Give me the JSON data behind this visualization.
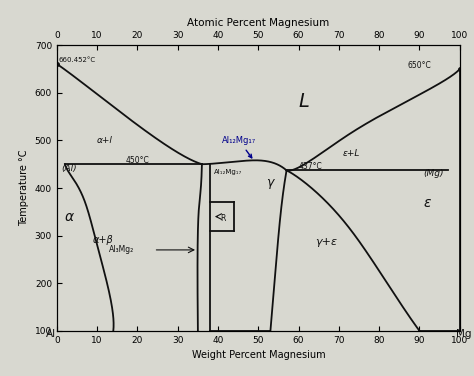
{
  "title_top": "Atomic Percent Magnesium",
  "xlabel": "Weight Percent Magnesium",
  "ylabel": "Temperature °C",
  "xlim": [
    0,
    100
  ],
  "ylim": [
    100,
    700
  ],
  "yticks": [
    100,
    200,
    300,
    400,
    500,
    600,
    700
  ],
  "xticks_bottom": [
    0,
    10,
    20,
    30,
    40,
    50,
    60,
    70,
    80,
    90,
    100
  ],
  "xticks_top": [
    0,
    10,
    20,
    30,
    40,
    50,
    60,
    70,
    80,
    90,
    100
  ],
  "background_color": "#d8d8d0",
  "line_color": "#111111",
  "arrow_color": "#00008B",
  "labels": {
    "Al_melt_text": "660.452°C",
    "Mg_melt_text": "650°C",
    "eutectic1_text": "450°C",
    "eutectic2_text": "437°C",
    "Al_label": "(Al)",
    "Mg_label": "(Mg)",
    "alpha_label": "α",
    "epsilon_label": "ε",
    "alpha_L_label": "α+l",
    "epsilon_L_label": "ε+L",
    "L_label": "L",
    "alpha_beta_label": "α+β",
    "gamma_label": "γ",
    "gamma_epsilon_label": "γ+ε",
    "Al12Mg17_arrow_label": "Al₁₂Mg₁₇",
    "Al12Mg17_gamma_label": "Al₁₂Mg₁₇",
    "Al3Mg2_label": "Al₃Mg₂",
    "R_label": "R",
    "Al_axis": "Al",
    "Mg_axis": "Mg"
  }
}
